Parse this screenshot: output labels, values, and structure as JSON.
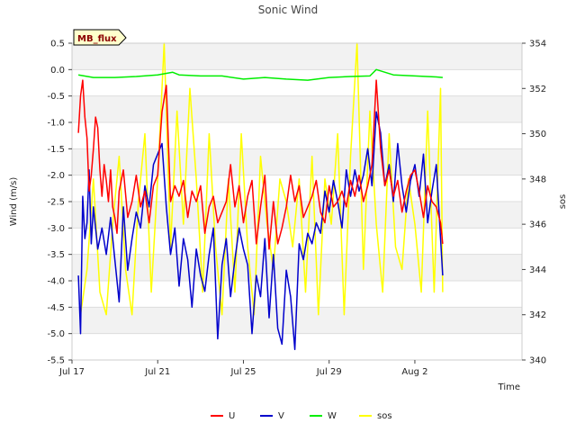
{
  "chart_data": {
    "type": "line",
    "title": "Sonic Wind",
    "badge": "MB_flux",
    "xlabel": "Time",
    "ylabel": "Wind (m/s)",
    "y2label": "sos",
    "xlim": [
      0,
      21
    ],
    "ylim": [
      -5.5,
      0.5
    ],
    "y2lim": [
      340,
      354
    ],
    "x_ticks": [
      {
        "value": 0,
        "label": "Jul 17"
      },
      {
        "value": 4,
        "label": "Jul 21"
      },
      {
        "value": 8,
        "label": "Jul 25"
      },
      {
        "value": 12,
        "label": "Jul 29"
      },
      {
        "value": 16,
        "label": "Aug 2"
      }
    ],
    "y_ticks": [
      {
        "value": 0.5,
        "label": "0.5"
      },
      {
        "value": 0.0,
        "label": "0.0"
      },
      {
        "value": -0.5,
        "label": "-0.5"
      },
      {
        "value": -1.0,
        "label": "-1.0"
      },
      {
        "value": -1.5,
        "label": "-1.5"
      },
      {
        "value": -2.0,
        "label": "-2.0"
      },
      {
        "value": -2.5,
        "label": "-2.5"
      },
      {
        "value": -3.0,
        "label": "-3.0"
      },
      {
        "value": -3.5,
        "label": "-3.5"
      },
      {
        "value": -4.0,
        "label": "-4.0"
      },
      {
        "value": -4.5,
        "label": "-4.5"
      },
      {
        "value": -5.0,
        "label": "-5.0"
      },
      {
        "value": -5.5,
        "label": "-5.5"
      }
    ],
    "y2_ticks": [
      {
        "value": 354,
        "label": "354"
      },
      {
        "value": 352,
        "label": "352"
      },
      {
        "value": 350,
        "label": "350"
      },
      {
        "value": 348,
        "label": "348"
      },
      {
        "value": 346,
        "label": "346"
      },
      {
        "value": 344,
        "label": "344"
      },
      {
        "value": 342,
        "label": "342"
      },
      {
        "value": 340,
        "label": "340"
      }
    ],
    "series": [
      {
        "name": "U",
        "axis": "left",
        "color": "#ff0000",
        "x": [
          0.3,
          0.4,
          0.5,
          0.6,
          0.7,
          0.8,
          0.9,
          1.0,
          1.1,
          1.2,
          1.3,
          1.4,
          1.5,
          1.6,
          1.7,
          1.8,
          1.9,
          2.0,
          2.1,
          2.2,
          2.4,
          2.6,
          2.8,
          3.0,
          3.2,
          3.4,
          3.6,
          3.8,
          4.0,
          4.2,
          4.4,
          4.6,
          4.8,
          5.0,
          5.2,
          5.4,
          5.6,
          5.8,
          6.0,
          6.2,
          6.4,
          6.6,
          6.8,
          7.0,
          7.2,
          7.4,
          7.6,
          7.8,
          8.0,
          8.2,
          8.4,
          8.6,
          8.8,
          9.0,
          9.2,
          9.4,
          9.6,
          9.8,
          10.0,
          10.2,
          10.4,
          10.6,
          10.8,
          11.0,
          11.2,
          11.4,
          11.6,
          11.8,
          12.0,
          12.2,
          12.4,
          12.6,
          12.8,
          13.0,
          13.2,
          13.4,
          13.6,
          13.8,
          14.0,
          14.2,
          14.4,
          14.6,
          14.8,
          15.0,
          15.2,
          15.4,
          15.6,
          15.8,
          16.0,
          16.2,
          16.4,
          16.6,
          16.8,
          17.0,
          17.2,
          17.3
        ],
        "values": [
          -1.2,
          -0.5,
          -0.2,
          -0.9,
          -1.3,
          -2.3,
          -2.0,
          -1.5,
          -0.9,
          -1.1,
          -1.9,
          -2.4,
          -1.8,
          -2.1,
          -2.5,
          -1.9,
          -2.6,
          -2.8,
          -3.1,
          -2.3,
          -1.9,
          -2.8,
          -2.5,
          -2.0,
          -2.6,
          -2.3,
          -2.9,
          -2.2,
          -2.0,
          -0.8,
          -0.3,
          -2.5,
          -2.2,
          -2.4,
          -2.1,
          -2.8,
          -2.3,
          -2.5,
          -2.2,
          -3.1,
          -2.6,
          -2.4,
          -2.9,
          -2.7,
          -2.5,
          -1.8,
          -2.6,
          -2.2,
          -2.9,
          -2.4,
          -2.1,
          -3.3,
          -2.6,
          -2.0,
          -3.4,
          -2.5,
          -3.3,
          -3.0,
          -2.6,
          -2.0,
          -2.5,
          -2.2,
          -2.8,
          -2.6,
          -2.4,
          -2.1,
          -2.7,
          -2.9,
          -2.2,
          -2.6,
          -2.5,
          -2.3,
          -2.6,
          -2.1,
          -2.4,
          -2.0,
          -2.5,
          -2.2,
          -1.8,
          -0.2,
          -1.5,
          -2.2,
          -1.9,
          -2.4,
          -2.1,
          -2.7,
          -2.3,
          -2.0,
          -1.9,
          -2.3,
          -2.8,
          -2.2,
          -2.5,
          -2.6,
          -2.9,
          -3.3
        ]
      },
      {
        "name": "V",
        "axis": "left",
        "color": "#0000cc",
        "x": [
          0.3,
          0.4,
          0.5,
          0.6,
          0.7,
          0.8,
          0.9,
          1.0,
          1.2,
          1.4,
          1.6,
          1.8,
          2.0,
          2.2,
          2.4,
          2.6,
          2.8,
          3.0,
          3.2,
          3.4,
          3.6,
          3.8,
          4.0,
          4.2,
          4.4,
          4.6,
          4.8,
          5.0,
          5.2,
          5.4,
          5.6,
          5.8,
          6.0,
          6.2,
          6.4,
          6.6,
          6.8,
          7.0,
          7.2,
          7.4,
          7.6,
          7.8,
          8.0,
          8.2,
          8.4,
          8.6,
          8.8,
          9.0,
          9.2,
          9.4,
          9.6,
          9.8,
          10.0,
          10.2,
          10.4,
          10.6,
          10.8,
          11.0,
          11.2,
          11.4,
          11.6,
          11.8,
          12.0,
          12.2,
          12.4,
          12.6,
          12.8,
          13.0,
          13.2,
          13.4,
          13.6,
          13.8,
          14.0,
          14.2,
          14.4,
          14.6,
          14.8,
          15.0,
          15.2,
          15.4,
          15.6,
          15.8,
          16.0,
          16.2,
          16.4,
          16.6,
          16.8,
          17.0,
          17.2,
          17.3
        ],
        "values": [
          -3.9,
          -5.0,
          -2.4,
          -3.2,
          -2.9,
          -1.9,
          -3.3,
          -2.6,
          -3.4,
          -3.0,
          -3.5,
          -2.8,
          -3.6,
          -4.4,
          -2.6,
          -3.8,
          -3.2,
          -2.7,
          -3.0,
          -2.2,
          -2.6,
          -1.8,
          -1.6,
          -1.4,
          -2.6,
          -3.5,
          -3.0,
          -4.1,
          -3.2,
          -3.6,
          -4.5,
          -3.4,
          -3.9,
          -4.2,
          -3.5,
          -3.0,
          -5.1,
          -3.7,
          -3.2,
          -4.3,
          -3.6,
          -3.0,
          -3.4,
          -3.7,
          -5.0,
          -3.9,
          -4.3,
          -3.2,
          -4.7,
          -3.5,
          -4.9,
          -5.2,
          -3.8,
          -4.3,
          -5.3,
          -3.3,
          -3.6,
          -3.1,
          -3.3,
          -2.9,
          -3.1,
          -2.3,
          -2.7,
          -2.1,
          -2.5,
          -3.0,
          -1.9,
          -2.4,
          -1.9,
          -2.3,
          -2.0,
          -1.5,
          -2.2,
          -0.8,
          -1.2,
          -2.2,
          -1.8,
          -2.5,
          -1.4,
          -2.2,
          -2.7,
          -2.1,
          -1.8,
          -2.4,
          -1.6,
          -2.9,
          -2.3,
          -1.8,
          -3.2,
          -3.9
        ]
      },
      {
        "name": "W",
        "axis": "left",
        "color": "#00ee00",
        "x": [
          0.3,
          1.0,
          2.0,
          3.0,
          4.0,
          4.7,
          5.0,
          6.0,
          7.0,
          8.0,
          9.0,
          10.0,
          11.0,
          12.0,
          13.0,
          13.9,
          14.2,
          15.0,
          16.0,
          17.0,
          17.3
        ],
        "values": [
          -0.1,
          -0.15,
          -0.15,
          -0.13,
          -0.1,
          -0.05,
          -0.1,
          -0.12,
          -0.12,
          -0.18,
          -0.15,
          -0.18,
          -0.2,
          -0.15,
          -0.13,
          -0.12,
          0.0,
          -0.1,
          -0.12,
          -0.14,
          -0.15
        ]
      },
      {
        "name": "sos",
        "axis": "right",
        "color": "#ffff00",
        "x": [
          0.4,
          0.7,
          1.0,
          1.3,
          1.6,
          1.9,
          2.2,
          2.5,
          2.8,
          3.1,
          3.4,
          3.7,
          4.0,
          4.3,
          4.6,
          4.9,
          5.2,
          5.5,
          5.8,
          6.1,
          6.4,
          6.7,
          7.0,
          7.3,
          7.6,
          7.9,
          8.2,
          8.5,
          8.8,
          9.1,
          9.4,
          9.7,
          10.0,
          10.3,
          10.6,
          10.9,
          11.2,
          11.5,
          11.8,
          12.1,
          12.4,
          12.7,
          13.0,
          13.3,
          13.6,
          13.9,
          14.2,
          14.5,
          14.8,
          15.1,
          15.4,
          15.7,
          16.0,
          16.3,
          16.6,
          16.9,
          17.2,
          17.3
        ],
        "values": [
          342,
          344,
          348,
          343,
          342,
          346,
          349,
          344,
          342,
          347,
          350,
          343,
          348,
          354,
          345,
          351,
          346,
          352,
          348,
          343,
          350,
          345,
          342,
          348,
          343,
          350,
          345,
          342,
          349,
          346,
          344,
          348,
          347,
          345,
          348,
          343,
          349,
          342,
          348,
          346,
          350,
          342,
          349,
          354,
          344,
          351,
          346,
          343,
          350,
          345,
          344,
          348,
          346,
          343,
          351,
          343,
          352,
          343
        ]
      }
    ],
    "legend": [
      "U",
      "V",
      "W",
      "sos"
    ],
    "legend_position": "bottom"
  }
}
